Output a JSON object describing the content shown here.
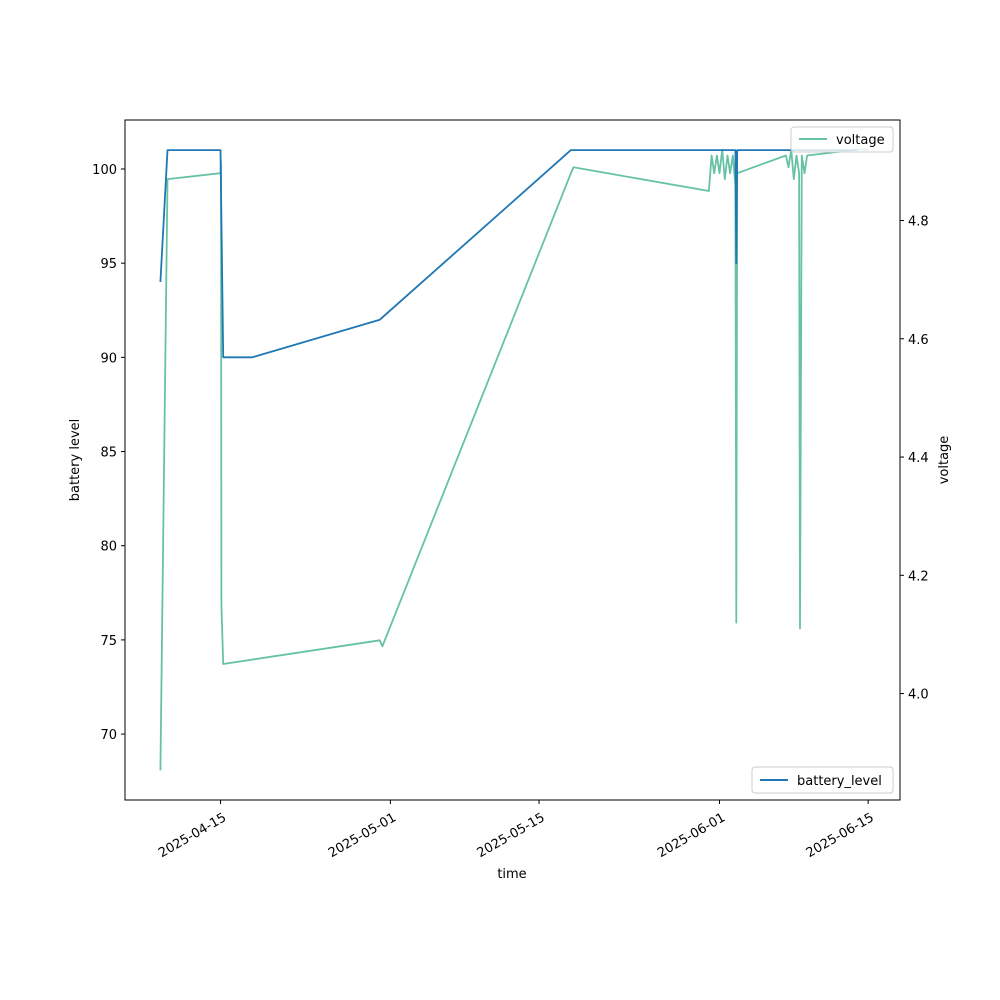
{
  "chart_data": {
    "type": "line",
    "xlabel": "time",
    "ylabel_left": "battery level",
    "ylabel_right": "voltage",
    "x_range": [
      "2025-04-06",
      "2025-06-18"
    ],
    "x_ticks": [
      "2025-04-15",
      "2025-05-01",
      "2025-05-15",
      "2025-06-01",
      "2025-06-15"
    ],
    "left_axis": {
      "range": [
        66.5,
        102.6
      ],
      "ticks": [
        70,
        75,
        80,
        85,
        90,
        95,
        100
      ]
    },
    "right_axis": {
      "range": [
        3.82,
        4.97
      ],
      "ticks": [
        4.0,
        4.2,
        4.4,
        4.6,
        4.8
      ]
    },
    "grid": false,
    "series": [
      {
        "name": "battery_level",
        "axis": "left",
        "color": "#1f77b4",
        "legend_position": "lower-right",
        "points": [
          [
            "2025-04-09 08:00",
            94
          ],
          [
            "2025-04-10 00:00",
            101
          ],
          [
            "2025-04-15 00:00",
            101
          ],
          [
            "2025-04-15 06:00",
            90
          ],
          [
            "2025-04-18 00:00",
            90
          ],
          [
            "2025-04-30 00:00",
            92
          ],
          [
            "2025-05-18 00:00",
            101
          ],
          [
            "2025-06-02 12:00",
            101
          ],
          [
            "2025-06-02 14:00",
            95
          ],
          [
            "2025-06-02 16:00",
            101
          ],
          [
            "2025-06-14 00:00",
            101
          ]
        ]
      },
      {
        "name": "voltage",
        "axis": "right",
        "color": "#66c2a5",
        "legend_position": "upper-right",
        "points": [
          [
            "2025-04-09 08:00",
            3.87
          ],
          [
            "2025-04-10 00:00",
            4.87
          ],
          [
            "2025-04-15 00:00",
            4.88
          ],
          [
            "2025-04-15 01:00",
            4.9
          ],
          [
            "2025-04-15 02:00",
            4.15
          ],
          [
            "2025-04-15 06:00",
            4.05
          ],
          [
            "2025-04-30 00:00",
            4.09
          ],
          [
            "2025-04-30 06:00",
            4.08
          ],
          [
            "2025-05-18 00:00",
            4.88
          ],
          [
            "2025-05-18 06:00",
            4.89
          ],
          [
            "2025-05-31 00:00",
            4.85
          ],
          [
            "2025-05-31 06:00",
            4.91
          ],
          [
            "2025-05-31 12:00",
            4.88
          ],
          [
            "2025-05-31 18:00",
            4.91
          ],
          [
            "2025-06-01 00:00",
            4.88
          ],
          [
            "2025-06-01 06:00",
            4.92
          ],
          [
            "2025-06-01 12:00",
            4.87
          ],
          [
            "2025-06-01 18:00",
            4.91
          ],
          [
            "2025-06-02 00:00",
            4.88
          ],
          [
            "2025-06-02 06:00",
            4.91
          ],
          [
            "2025-06-02 12:00",
            4.86
          ],
          [
            "2025-06-02 14:00",
            4.12
          ],
          [
            "2025-06-02 16:00",
            4.88
          ],
          [
            "2025-06-07 06:00",
            4.91
          ],
          [
            "2025-06-07 12:00",
            4.89
          ],
          [
            "2025-06-07 18:00",
            4.92
          ],
          [
            "2025-06-08 00:00",
            4.87
          ],
          [
            "2025-06-08 06:00",
            4.91
          ],
          [
            "2025-06-08 12:00",
            4.88
          ],
          [
            "2025-06-08 14:00",
            4.11
          ],
          [
            "2025-06-08 18:00",
            4.91
          ],
          [
            "2025-06-09 00:00",
            4.88
          ],
          [
            "2025-06-09 06:00",
            4.91
          ],
          [
            "2025-06-14 00:00",
            4.92
          ],
          [
            "2025-06-15 00:00",
            4.92
          ]
        ]
      }
    ]
  }
}
